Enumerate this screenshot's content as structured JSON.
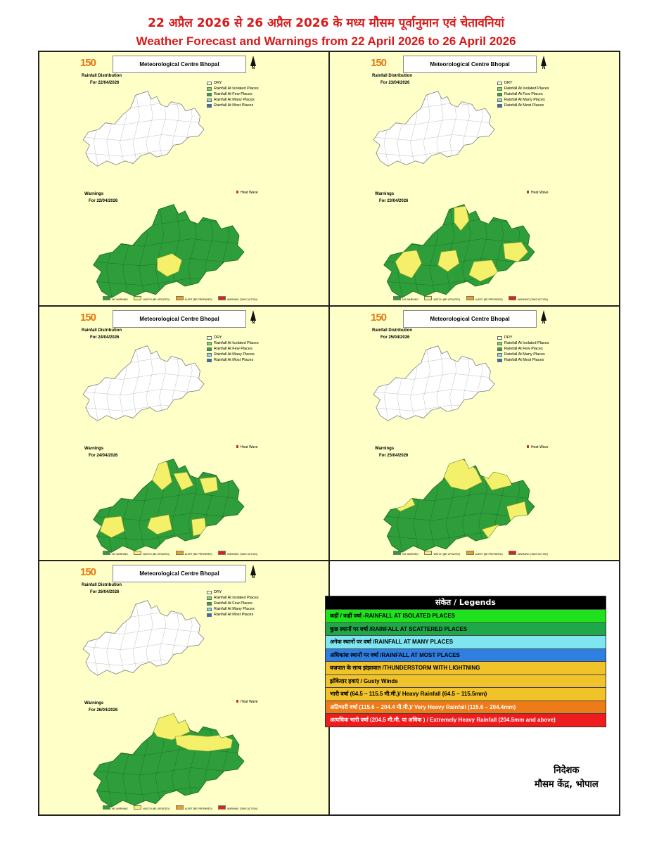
{
  "header": {
    "title_hindi": "22 अप्रैल 2026 से 26 अप्रैल 2026 के मध्य मौसम पूर्वानुमान एवं चेतावनियां",
    "title_english": "Weather Forecast and Warnings from 22 April 2026 to 26 April 2026"
  },
  "panel_common": {
    "logo_number": "150",
    "centre_title": "Meteorological Centre Bhopal",
    "north": "N",
    "rain_title": "Rainfall Distribution",
    "warn_title": "Warnings",
    "rain_legend": [
      "DRY",
      "Rainfall At Isolated Places",
      "Rainfall At Few Places",
      "Rainfall At Many Places",
      "Rainfall At Most Places"
    ],
    "heat_wave": "Heat Wave",
    "warn_legend": [
      "NO WARNING",
      "WATCH (BE UPDATED)",
      "ALERT (BE PREPARED)",
      "WARNING (TAKE ACTION)"
    ]
  },
  "panels": [
    {
      "rain_date": "For 22/04/2026",
      "warn_date": "For 22/04/2026"
    },
    {
      "rain_date": "For 23/04/2026",
      "warn_date": "For 23/04/2026"
    },
    {
      "rain_date": "For 24/04/2026",
      "warn_date": "For 24/04/2026"
    },
    {
      "rain_date": "For 25/04/2026",
      "warn_date": "For 25/04/2026"
    },
    {
      "rain_date": "For 26/04/2026",
      "warn_date": "For 26/04/2026"
    }
  ],
  "colors": {
    "panel_bg": "#ffffc8",
    "no_warning": "#2e9e3a",
    "watch": "#f5f06a",
    "alert": "#f0a020",
    "warning": "#e02020",
    "dry": "#ffffff",
    "isolated": "#6ee85a",
    "few": "#2aa84a",
    "many": "#7fe0e8",
    "most": "#2f6fd8",
    "title_red": "#d71919"
  },
  "legend": {
    "title": "संकेत / Legends",
    "items": [
      {
        "text": "कहीं / कहीं वर्षा -RAINFALL AT ISOLATED PLACES",
        "bg": "#1fe21f",
        "fg": "#000000"
      },
      {
        "text": "कुछ स्थानों पर वर्षा /RAINFALL AT SCATTERED PLACES",
        "bg": "#1fa84a",
        "fg": "#000000"
      },
      {
        "text": "अनेक स्थानों पर वर्षा /RAINFALL AT MANY PLACES",
        "bg": "#7fe6f0",
        "fg": "#000000"
      },
      {
        "text": "अधिकांश स्थानों पर वर्षा /RAINFALL AT MOST PLACES",
        "bg": "#2e7fe0",
        "fg": "#000000"
      },
      {
        "text": "वज्रपात के साथ झंझावात /THUNDERSTORM WITH LIGHTNING",
        "bg": "#f0c32a",
        "fg": "#000000"
      },
      {
        "text": "झोंकेदार हवाएं / Gusty Winds",
        "bg": "#f0c32a",
        "fg": "#000000"
      },
      {
        "text": "भारी वर्षा (64.5 – 115.5 मी.मी.)/ Heavy Rainfall (64.5 – 115.5mm)",
        "bg": "#f0c32a",
        "fg": "#000000"
      },
      {
        "text": "अतिभारी वर्षा (115.6 – 204.4 मी.मी.)/ Very Heavy Rainfall (115.6 – 204.4mm)",
        "bg": "#ee7a18",
        "fg": "#ffffff"
      },
      {
        "text": "अत्यधिक भारी वर्षा (204.5 मी.मी. या अधिक ) / Extremely Heavy Rainfall (204.5mm and above)",
        "bg": "#ee1c1c",
        "fg": "#ffffff"
      }
    ]
  },
  "signature": {
    "line1": "निदेशक",
    "line2": "मौसम केंद्र, भोपाल"
  }
}
